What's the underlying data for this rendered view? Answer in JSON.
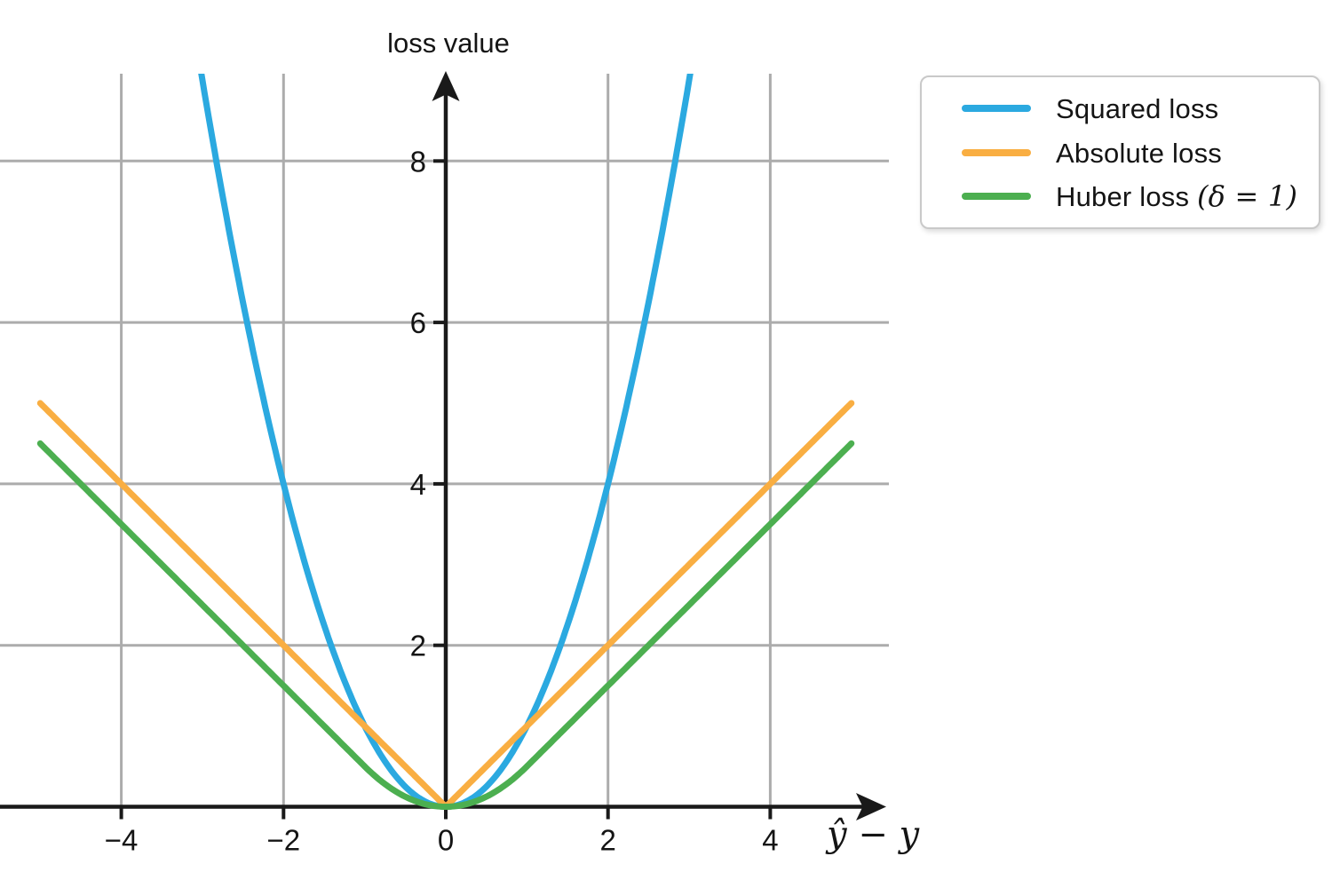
{
  "chart_data": {
    "type": "line",
    "title": "",
    "ylabel": "loss value",
    "xlabel": "ŷ − y",
    "x_range": [
      -5,
      5
    ],
    "xlim": [
      -5.5,
      5.5
    ],
    "ylim": [
      0,
      9.1
    ],
    "xticks": [
      -4,
      -2,
      0,
      2,
      4
    ],
    "yticks": [
      2,
      4,
      6,
      8
    ],
    "grid": true,
    "legend_position": "upper right outside plot",
    "series": [
      {
        "id": "squared",
        "name": "Squared loss",
        "color": "#2BA9E0",
        "points": [
          [
            -3,
            9
          ],
          [
            -2.5,
            6.25
          ],
          [
            -2,
            4
          ],
          [
            -1.5,
            2.25
          ],
          [
            -1,
            1
          ],
          [
            -0.5,
            0.25
          ],
          [
            0,
            0
          ],
          [
            0.5,
            0.25
          ],
          [
            1,
            1
          ],
          [
            1.5,
            2.25
          ],
          [
            2,
            4
          ],
          [
            2.5,
            6.25
          ],
          [
            3,
            9
          ]
        ]
      },
      {
        "id": "absolute",
        "name": "Absolute loss",
        "color": "#F9AE42",
        "points": [
          [
            -5,
            5
          ],
          [
            -4,
            4
          ],
          [
            -3,
            3
          ],
          [
            -2,
            2
          ],
          [
            -1,
            1
          ],
          [
            0,
            0
          ],
          [
            1,
            1
          ],
          [
            2,
            2
          ],
          [
            3,
            3
          ],
          [
            4,
            4
          ],
          [
            5,
            5
          ]
        ]
      },
      {
        "id": "huber",
        "name": "Huber loss (δ = 1)",
        "color": "#4CAF50",
        "delta": 1,
        "points": [
          [
            -5,
            4.5
          ],
          [
            -4,
            3.5
          ],
          [
            -3,
            2.5
          ],
          [
            -2,
            1.5
          ],
          [
            -1,
            0.5
          ],
          [
            -0.5,
            0.125
          ],
          [
            0,
            0
          ],
          [
            0.5,
            0.125
          ],
          [
            1,
            0.5
          ],
          [
            2,
            1.5
          ],
          [
            3,
            2.5
          ],
          [
            4,
            3.5
          ],
          [
            5,
            4.5
          ]
        ]
      }
    ]
  },
  "legend": {
    "items": [
      {
        "label": "Squared loss",
        "math": "",
        "color": "#2BA9E0"
      },
      {
        "label": "Absolute loss",
        "math": "",
        "color": "#F9AE42"
      },
      {
        "label": "Huber loss ",
        "math": "(δ = 1)",
        "color": "#4CAF50"
      }
    ]
  }
}
